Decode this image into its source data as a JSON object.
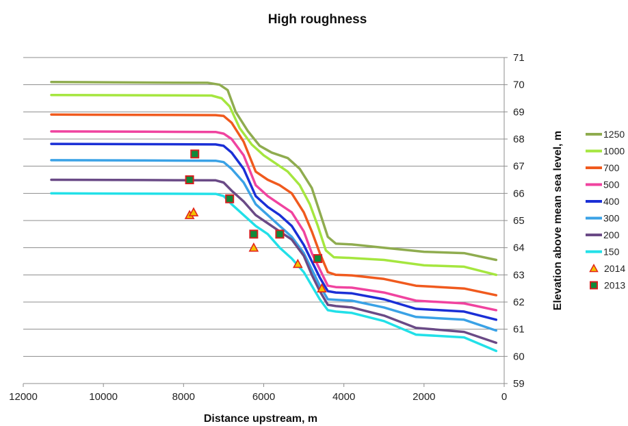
{
  "chart_data": {
    "type": "line",
    "title": "High roughness",
    "xlabel": "Distance upstream, m",
    "ylabel": "Elevation above mean sea level, m",
    "xlim": [
      12000,
      0
    ],
    "ylim": [
      59,
      71
    ],
    "x_ticks": [
      "12000",
      "10000",
      "8000",
      "6000",
      "4000",
      "2000",
      "0"
    ],
    "y_ticks": [
      "59",
      "60",
      "61",
      "62",
      "63",
      "64",
      "65",
      "66",
      "67",
      "68",
      "69",
      "70",
      "71"
    ],
    "grid": true,
    "y_axis_side": "right",
    "legend_position": "right",
    "series": [
      {
        "name": "1250",
        "color": "#8fac4f",
        "kind": "line",
        "x": [
          11300,
          9000,
          7400,
          7100,
          6900,
          6700,
          6400,
          6100,
          5800,
          5400,
          5100,
          4800,
          4600,
          4400,
          4200,
          3800,
          3000,
          2000,
          1000,
          200
        ],
        "y": [
          70.1,
          70.08,
          70.07,
          70.0,
          69.8,
          69.0,
          68.3,
          67.75,
          67.5,
          67.3,
          66.9,
          66.2,
          65.3,
          64.4,
          64.15,
          64.12,
          64.0,
          63.85,
          63.8,
          63.55
        ]
      },
      {
        "name": "1000",
        "color": "#a5e63f",
        "kind": "line",
        "x": [
          11300,
          9000,
          7300,
          7050,
          6850,
          6600,
          6300,
          6000,
          5700,
          5400,
          5100,
          4850,
          4650,
          4450,
          4250,
          3800,
          3000,
          2000,
          1000,
          200
        ],
        "y": [
          69.62,
          69.61,
          69.6,
          69.5,
          69.2,
          68.4,
          67.8,
          67.4,
          67.1,
          66.8,
          66.3,
          65.6,
          64.8,
          63.9,
          63.65,
          63.62,
          63.55,
          63.35,
          63.3,
          63.0
        ]
      },
      {
        "name": "700",
        "color": "#f05a1e",
        "kind": "line",
        "x": [
          11300,
          9000,
          7200,
          7000,
          6800,
          6500,
          6200,
          5900,
          5600,
          5300,
          5000,
          4800,
          4600,
          4400,
          4200,
          3800,
          3000,
          2200,
          1000,
          200
        ],
        "y": [
          68.9,
          68.89,
          68.88,
          68.85,
          68.6,
          67.9,
          66.8,
          66.5,
          66.3,
          66.0,
          65.3,
          64.6,
          63.8,
          63.1,
          63.0,
          62.98,
          62.85,
          62.6,
          62.5,
          62.25
        ]
      },
      {
        "name": "500",
        "color": "#f0439f",
        "kind": "line",
        "x": [
          11300,
          9000,
          7200,
          7000,
          6800,
          6500,
          6200,
          5900,
          5600,
          5300,
          5000,
          4800,
          4600,
          4400,
          4200,
          3800,
          3000,
          2200,
          1000,
          200
        ],
        "y": [
          68.28,
          68.27,
          68.26,
          68.2,
          68.0,
          67.4,
          66.3,
          65.9,
          65.6,
          65.3,
          64.6,
          63.8,
          63.2,
          62.6,
          62.55,
          62.53,
          62.35,
          62.05,
          61.95,
          61.7
        ]
      },
      {
        "name": "400",
        "color": "#1a2fd6",
        "kind": "line",
        "x": [
          11300,
          9000,
          7200,
          7000,
          6800,
          6500,
          6200,
          5900,
          5600,
          5300,
          5000,
          4800,
          4600,
          4400,
          4200,
          3800,
          3000,
          2200,
          1000,
          200
        ],
        "y": [
          67.82,
          67.81,
          67.8,
          67.75,
          67.5,
          66.9,
          65.9,
          65.5,
          65.2,
          64.8,
          64.1,
          63.5,
          62.9,
          62.4,
          62.35,
          62.32,
          62.1,
          61.75,
          61.65,
          61.35
        ]
      },
      {
        "name": "300",
        "color": "#3aa2e6",
        "kind": "line",
        "x": [
          11300,
          9000,
          7200,
          7000,
          6800,
          6500,
          6200,
          5900,
          5600,
          5300,
          5000,
          4800,
          4600,
          4400,
          4200,
          3800,
          3000,
          2200,
          1000,
          200
        ],
        "y": [
          67.22,
          67.21,
          67.2,
          67.15,
          66.9,
          66.4,
          65.6,
          65.2,
          64.8,
          64.4,
          63.8,
          63.2,
          62.6,
          62.1,
          62.08,
          62.05,
          61.8,
          61.45,
          61.35,
          60.95
        ]
      },
      {
        "name": "200",
        "color": "#6a4a86",
        "kind": "line",
        "x": [
          11300,
          9000,
          7200,
          7000,
          6800,
          6500,
          6200,
          5900,
          5600,
          5300,
          5000,
          4800,
          4600,
          4400,
          4200,
          3800,
          3000,
          2200,
          1000,
          200
        ],
        "y": [
          66.5,
          66.49,
          66.48,
          66.4,
          66.1,
          65.7,
          65.2,
          64.9,
          64.6,
          64.3,
          63.7,
          63.0,
          62.4,
          61.9,
          61.85,
          61.8,
          61.5,
          61.05,
          60.9,
          60.5
        ]
      },
      {
        "name": "150",
        "color": "#22e0e8",
        "kind": "line",
        "x": [
          11300,
          9000,
          7200,
          7000,
          6800,
          6500,
          6200,
          5900,
          5600,
          5300,
          5000,
          4800,
          4600,
          4400,
          4200,
          3800,
          3000,
          2200,
          1000,
          200
        ],
        "y": [
          66.0,
          65.99,
          65.98,
          65.9,
          65.6,
          65.2,
          64.8,
          64.5,
          64.0,
          63.6,
          63.1,
          62.6,
          62.1,
          61.7,
          61.65,
          61.6,
          61.3,
          60.8,
          60.7,
          60.2
        ]
      },
      {
        "name": "2014",
        "color": "#f2c200",
        "edge": "#e2231a",
        "kind": "triangle",
        "x": [
          7850,
          7750,
          6250,
          5150,
          4550
        ],
        "y": [
          65.2,
          65.3,
          64.0,
          63.4,
          62.5
        ]
      },
      {
        "name": "2013",
        "color": "#0f8a3a",
        "edge": "#d42020",
        "kind": "square",
        "x": [
          7720,
          7850,
          6850,
          6250,
          5600,
          4650
        ],
        "y": [
          67.45,
          66.5,
          65.8,
          64.5,
          64.5,
          63.6
        ]
      }
    ]
  }
}
